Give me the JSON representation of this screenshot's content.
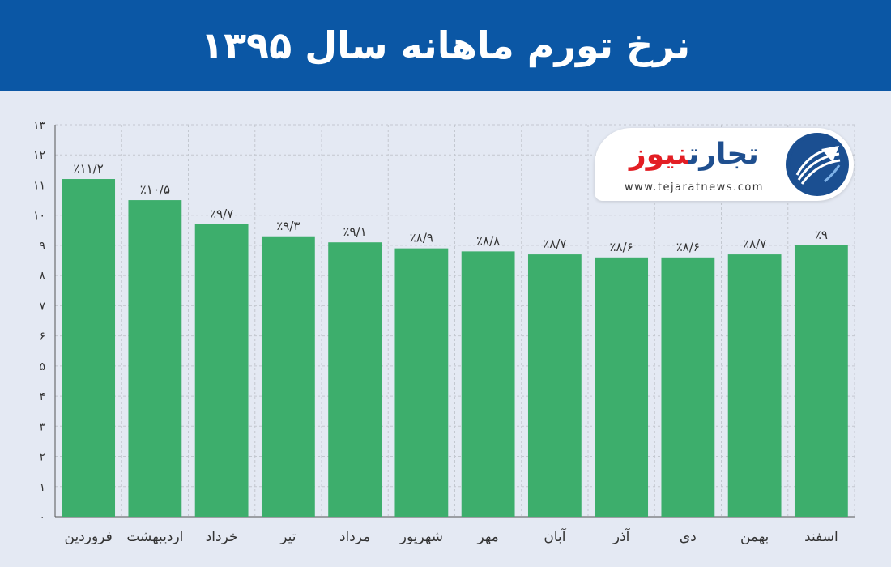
{
  "header": {
    "title": "نرخ تورم ماهانه سال ۱۳۹۵"
  },
  "logo": {
    "name_part1": "تجارت",
    "name_part2": "نیوز",
    "url": "www.tejaratnews.com",
    "icon": "tejaratnews-globe-icon"
  },
  "colors": {
    "header": "#0b57a5",
    "background": "#e4e9f3",
    "bar": "#3dae6c",
    "grid": "#c3c8d0",
    "logo_blue": "#1f4f8f",
    "logo_red": "#e31e24"
  },
  "chart_data": {
    "type": "bar",
    "title": "نرخ تورم ماهانه سال ۱۳۹۵",
    "xlabel": "",
    "ylabel": "",
    "categories": [
      "فروردین",
      "اردیبهشت",
      "خرداد",
      "تیر",
      "مرداد",
      "شهریور",
      "مهر",
      "آبان",
      "آذر",
      "دی",
      "بهمن",
      "اسفند"
    ],
    "values": [
      11.2,
      10.5,
      9.7,
      9.3,
      9.1,
      8.9,
      8.8,
      8.7,
      8.6,
      8.6,
      8.7,
      9
    ],
    "data_labels": [
      "٪۱۱/۲",
      "٪۱۰/۵",
      "٪۹/۷",
      "٪۹/۳",
      "٪۹/۱",
      "٪۸/۹",
      "٪۸/۸",
      "٪۸/۷",
      "٪۸/۶",
      "٪۸/۶",
      "٪۸/۷",
      "٪۹"
    ],
    "y_ticks": [
      "۰",
      "۱",
      "۲",
      "۳",
      "۴",
      "۵",
      "۶",
      "۷",
      "۸",
      "۹",
      "۱۰",
      "۱۱",
      "۱۲",
      "۱۳"
    ],
    "ylim": [
      0,
      13
    ],
    "grid": true,
    "legend": "none"
  }
}
